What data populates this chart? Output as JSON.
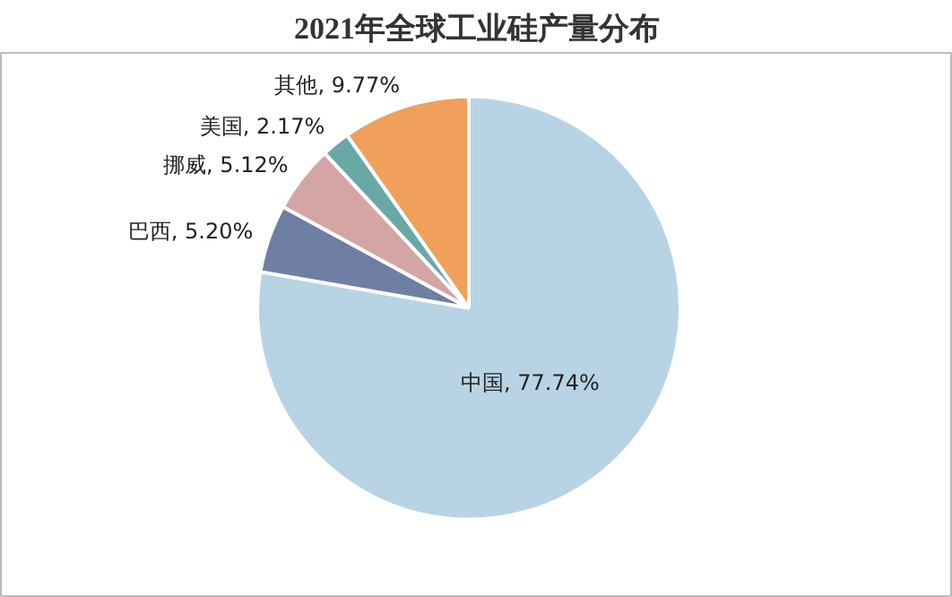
{
  "chart_data": {
    "type": "pie",
    "title": "2021年全球工业硅产量分布",
    "categories": [
      "中国",
      "巴西",
      "挪威",
      "美国",
      "其他"
    ],
    "values": [
      77.74,
      5.2,
      5.12,
      2.17,
      9.77
    ],
    "value_labels": [
      "77.74%",
      "5.20%",
      "5.12%",
      "2.17%",
      "9.77%"
    ],
    "colors": [
      "#b8d4e4",
      "#6e7fa3",
      "#d4a5a5",
      "#6aa8a8",
      "#f0a05a"
    ]
  }
}
